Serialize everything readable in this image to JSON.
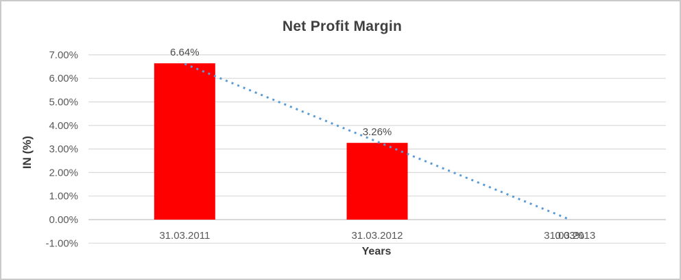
{
  "chart": {
    "background": "#ffffff",
    "border_color": "#cbc9c9"
  },
  "chart_data": {
    "type": "bar",
    "title": "Net Profit Margin",
    "categories": [
      "31.03.2011",
      "31.03.2012",
      "31.03.2013"
    ],
    "values": [
      6.64,
      3.26,
      0.03
    ],
    "data_labels": [
      "6.64%",
      "3.26%",
      "0.03%"
    ],
    "xlabel": "Years",
    "ylabel": "IN (%)",
    "ylim": [
      -1,
      7
    ],
    "ytick_interval": 1,
    "ytick_labels": [
      "-1.00%",
      "0.00%",
      "1.00%",
      "2.00%",
      "3.00%",
      "4.00%",
      "5.00%",
      "6.00%",
      "7.00%"
    ],
    "grid": true,
    "legend": "none",
    "trendline": {
      "type": "linear",
      "style": "dotted"
    },
    "colors": {
      "bar": "#ff0000",
      "trendline": "#5b9bd5",
      "gridline": "#d9d9d9",
      "axis_line": "#c0bfbf",
      "tick_text": "#595959",
      "title_text": "#3f3f3f",
      "axis_title_text": "#3a3a3a",
      "data_label_text": "#4a4a4a"
    }
  }
}
